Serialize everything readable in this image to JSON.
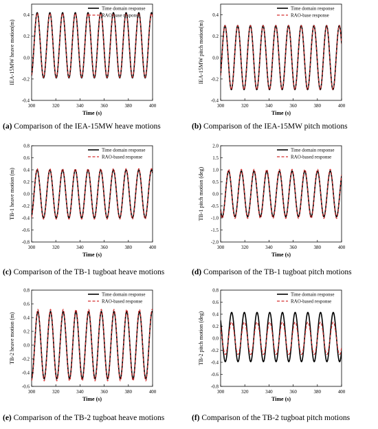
{
  "chart_data": [
    {
      "type": "line",
      "panel_label": "(a)",
      "caption": "Comparison of the IEA-15MW heave motions",
      "xlabel": "Time (s)",
      "ylabel": "IEA-15MW heave motion(m)",
      "xlim": [
        300,
        400
      ],
      "ylim": [
        -0.4,
        0.5
      ],
      "xticks": [
        "300",
        "320",
        "340",
        "360",
        "380",
        "400"
      ],
      "yticks": [
        "-0.4",
        "-0.2",
        "0.0",
        "0.2",
        "0.4"
      ],
      "legend": "top-right",
      "period": 10.5,
      "series": [
        {
          "name": "Time domain response",
          "style": "solid",
          "color": "#000000",
          "amplitude": 0.305,
          "offset": 0.115,
          "phase_time": 302
        },
        {
          "name": "RAO-base response",
          "style": "dashed",
          "color": "#d32f2f",
          "amplitude": 0.3,
          "offset": 0.115,
          "phase_time": 302
        }
      ]
    },
    {
      "type": "line",
      "panel_label": "(b)",
      "caption": "Comparison of the IEA-15MW pitch motions",
      "xlabel": "Time (s)",
      "ylabel": "IEA-15MW pitch motion(m)",
      "xlim": [
        300,
        400
      ],
      "ylim": [
        -0.4,
        0.5
      ],
      "xticks": [
        "300",
        "320",
        "340",
        "360",
        "380",
        "400"
      ],
      "yticks": [
        "-0.4",
        "-0.2",
        "0.0",
        "0.2",
        "0.4"
      ],
      "legend": "top-right",
      "period": 10.5,
      "series": [
        {
          "name": "Time domain response",
          "style": "solid",
          "color": "#000000",
          "amplitude": 0.3,
          "offset": 0.0,
          "phase_time": 301
        },
        {
          "name": "RAO-base response",
          "style": "dashed",
          "color": "#d32f2f",
          "amplitude": 0.3,
          "offset": 0.0,
          "phase_time": 301
        }
      ]
    },
    {
      "type": "line",
      "panel_label": "(c)",
      "caption": "Comparison of the TB-1 tugboat heave motions",
      "xlabel": "Time (s)",
      "ylabel": "TB-1 heave motion (m)",
      "xlim": [
        300,
        400
      ],
      "ylim": [
        -0.8,
        0.8
      ],
      "xticks": [
        "300",
        "320",
        "340",
        "360",
        "380",
        "400"
      ],
      "yticks": [
        "-0.8",
        "-0.6",
        "-0.4",
        "-0.2",
        "0.0",
        "0.2",
        "0.4",
        "0.6",
        "0.8"
      ],
      "legend": "top-right",
      "period": 10.5,
      "series": [
        {
          "name": "Time domain response",
          "style": "solid",
          "color": "#000000",
          "amplitude": 0.4,
          "offset": 0.0,
          "phase_time": 302
        },
        {
          "name": "RAO-based response",
          "style": "dashed",
          "color": "#d32f2f",
          "amplitude": 0.42,
          "offset": 0.0,
          "phase_time": 302
        }
      ]
    },
    {
      "type": "line",
      "panel_label": "(d)",
      "caption": "Comparison of the TB-1 tugboat pitch motions",
      "xlabel": "Time (s)",
      "ylabel": "TB-1 pitch motion (deg)",
      "xlim": [
        300,
        400
      ],
      "ylim": [
        -2.0,
        2.0
      ],
      "xticks": [
        "300",
        "320",
        "340",
        "360",
        "380",
        "400"
      ],
      "yticks": [
        "-2.0",
        "-1.5",
        "-1.0",
        "-0.5",
        "0.0",
        "0.5",
        "1.0",
        "1.5",
        "2.0"
      ],
      "legend": "top-right",
      "period": 10.5,
      "series": [
        {
          "name": "Time domain response",
          "style": "solid",
          "color": "#000000",
          "amplitude": 0.95,
          "offset": 0.0,
          "phase_time": 304
        },
        {
          "name": "RAO-based response",
          "style": "dashed",
          "color": "#d32f2f",
          "amplitude": 1.02,
          "offset": 0.0,
          "phase_time": 304
        }
      ]
    },
    {
      "type": "line",
      "panel_label": "(e)",
      "caption": "Comparison of the TB-2 tugboat heave motions",
      "xlabel": "Time (s)",
      "ylabel": "TB-2 heave motion (m)",
      "xlim": [
        300,
        400
      ],
      "ylim": [
        -0.6,
        0.8
      ],
      "xticks": [
        "300",
        "320",
        "340",
        "360",
        "380",
        "400"
      ],
      "yticks": [
        "-0.6",
        "-0.4",
        "-0.2",
        "0.0",
        "0.2",
        "0.4",
        "0.6",
        "0.8"
      ],
      "legend": "top-right",
      "period": 10.5,
      "series": [
        {
          "name": "Time domain response",
          "style": "solid",
          "color": "#000000",
          "amplitude": 0.49,
          "offset": 0.0,
          "phase_time": 302.5
        },
        {
          "name": "RAO-based response",
          "style": "dashed",
          "color": "#d32f2f",
          "amplitude": 0.52,
          "offset": 0.0,
          "phase_time": 302.5
        }
      ]
    },
    {
      "type": "line",
      "panel_label": "(f)",
      "caption": "Comparison of the TB-2 tugboat pitch motions",
      "xlabel": "Time (s)",
      "ylabel": "TB-2 pitch motion (deg)",
      "xlim": [
        300,
        400
      ],
      "ylim": [
        -0.8,
        0.8
      ],
      "xticks": [
        "300",
        "320",
        "340",
        "360",
        "380",
        "400"
      ],
      "yticks": [
        "-0.8",
        "-0.6",
        "-0.4",
        "-0.2",
        "0.0",
        "0.2",
        "0.4",
        "0.6",
        "0.8"
      ],
      "legend": "top-right",
      "period": 10.5,
      "series": [
        {
          "name": "Time domain response",
          "style": "solid",
          "color": "#000000",
          "amplitude": 0.41,
          "offset": 0.02,
          "phase_time": 306.5
        },
        {
          "name": "RAO-based response",
          "style": "dashed",
          "color": "#d32f2f",
          "amplitude": 0.27,
          "offset": 0.0,
          "phase_time": 306.5
        }
      ]
    }
  ]
}
